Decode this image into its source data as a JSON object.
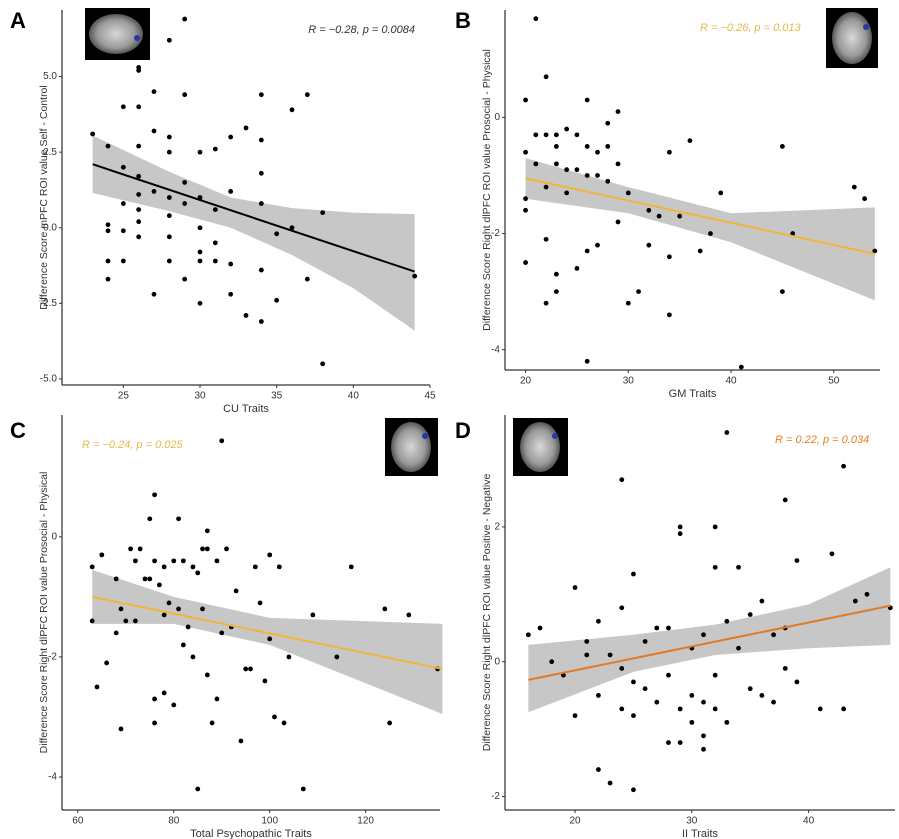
{
  "chart_data": [
    {
      "type": "scatter",
      "label": "A",
      "annotation": "R = −0.28, p = 0.0084",
      "annotation_color": "#333333",
      "x_label": "CU Traits",
      "y_label": "Difference Score mPFC ROI value Self - Control",
      "color": "#000000",
      "xlim": [
        21,
        45
      ],
      "xticks": [
        25,
        30,
        35,
        40,
        45
      ],
      "ylim": [
        -5.2,
        7.2
      ],
      "yticks": [
        {
          "value": 5,
          "label": "5.0"
        },
        {
          "value": 2.5,
          "label": "2.5"
        },
        {
          "value": 0,
          "label": "0.0"
        },
        {
          "value": -2.5,
          "label": "-2.5"
        },
        {
          "value": -5,
          "label": "-5.0"
        }
      ],
      "x": [
        23,
        24,
        24,
        24,
        24,
        24,
        25,
        25,
        25,
        25,
        25,
        26,
        26,
        26,
        26,
        26,
        26,
        26,
        26,
        26,
        27,
        27,
        27,
        27,
        28,
        28,
        28,
        28,
        28,
        28,
        28,
        29,
        29,
        29,
        29,
        29,
        30,
        30,
        30,
        30,
        30,
        30,
        31,
        31,
        31,
        31,
        32,
        32,
        32,
        32,
        33,
        33,
        34,
        34,
        34,
        34,
        34,
        34,
        35,
        35,
        36,
        36,
        37,
        37,
        38,
        38,
        44
      ],
      "y": [
        3.1,
        2.7,
        -0.1,
        -1.1,
        -1.7,
        0.1,
        4.0,
        2.0,
        0.8,
        -0.1,
        -1.1,
        5.3,
        5.2,
        4.0,
        2.7,
        1.7,
        1.1,
        0.6,
        0.2,
        -0.3,
        4.5,
        3.2,
        1.2,
        -2.2,
        6.2,
        3.0,
        2.5,
        1.0,
        0.4,
        -0.3,
        -1.1,
        4.4,
        6.9,
        1.5,
        0.8,
        -1.7,
        2.5,
        1.0,
        0.0,
        -0.8,
        -1.1,
        -2.5,
        2.6,
        0.6,
        -0.5,
        -1.1,
        3.0,
        1.2,
        -1.2,
        -2.2,
        3.3,
        -2.9,
        4.4,
        2.9,
        1.8,
        0.8,
        -1.4,
        -3.1,
        -0.2,
        -2.4,
        3.9,
        0.0,
        4.4,
        -1.7,
        0.5,
        -4.5,
        -1.6
      ],
      "trend": {
        "color": "#000000",
        "x": [
          23,
          44
        ],
        "y": [
          2.1,
          -1.45
        ]
      },
      "band": {
        "color": "#bdbdbd",
        "x": [
          23,
          28,
          32,
          36,
          40,
          44
        ],
        "lower": [
          1.15,
          0.55,
          0.0,
          -0.9,
          -2.0,
          -3.4
        ],
        "upper": [
          3.05,
          1.85,
          1.0,
          0.65,
          0.5,
          0.45
        ]
      }
    },
    {
      "type": "scatter",
      "label": "B",
      "annotation": "R = −0.26, p = 0.013",
      "annotation_color": "#e8b84a",
      "x_label": "GM Traits",
      "y_label": "Difference Score Right dlPFC ROI value Prosocial - Physical",
      "color": "#000000",
      "xlim": [
        18,
        54.5
      ],
      "xticks": [
        20,
        30,
        40,
        50
      ],
      "ylim": [
        -4.35,
        1.85
      ],
      "yticks": [
        0,
        -2,
        -4
      ],
      "x": [
        20,
        20,
        20,
        20,
        20,
        21,
        21,
        21,
        22,
        22,
        22,
        22,
        22,
        23,
        23,
        23,
        23,
        23,
        24,
        24,
        24,
        25,
        25,
        25,
        26,
        26,
        26,
        26,
        26,
        27,
        27,
        27,
        28,
        28,
        28,
        29,
        29,
        29,
        30,
        30,
        31,
        32,
        32,
        33,
        34,
        34,
        34,
        35,
        36,
        37,
        38,
        39,
        41,
        45,
        45,
        46,
        52,
        53,
        54
      ],
      "y": [
        0.3,
        -0.6,
        -1.4,
        -1.6,
        -2.5,
        1.7,
        -0.3,
        -0.8,
        0.7,
        -0.3,
        -1.2,
        -2.1,
        -3.2,
        -0.3,
        -0.5,
        -0.8,
        -2.7,
        -3.0,
        -0.2,
        -0.9,
        -1.3,
        -0.3,
        -0.9,
        -2.6,
        0.3,
        -0.5,
        -1.0,
        -2.3,
        -4.2,
        -0.6,
        -1.0,
        -2.2,
        -0.1,
        -0.5,
        -1.1,
        0.1,
        -0.8,
        -1.8,
        -1.3,
        -3.2,
        -3.0,
        -1.6,
        -2.2,
        -1.7,
        -0.6,
        -2.4,
        -3.4,
        -1.7,
        -0.4,
        -2.3,
        -2.0,
        -1.3,
        -4.3,
        -0.5,
        -3.0,
        -2.0,
        -1.2,
        -1.4,
        -2.3
      ],
      "trend": {
        "color": "#f0b63c",
        "x": [
          20,
          54
        ],
        "y": [
          -1.05,
          -2.35
        ]
      },
      "band": {
        "color": "#bdbdbd",
        "x": [
          20,
          30,
          40,
          54
        ],
        "lower": [
          -1.4,
          -1.65,
          -2.15,
          -3.15
        ],
        "upper": [
          -0.7,
          -1.2,
          -1.65,
          -1.55
        ]
      }
    },
    {
      "type": "scatter",
      "label": "C",
      "annotation": "R = −0.24, p = 0.025",
      "annotation_color": "#e8b84a",
      "x_label": "Total Psychopathic Traits",
      "y_label": "Difference Score Right dlPFC ROI value Prosocial - Physical",
      "color": "#000000",
      "xlim": [
        56.7,
        135.5
      ],
      "xticks": [
        60,
        80,
        100,
        120
      ],
      "ylim": [
        -4.55,
        2.03
      ],
      "yticks": [
        0,
        -2,
        -4
      ],
      "x": [
        63,
        63,
        64,
        65,
        66,
        68,
        68,
        69,
        69,
        70,
        71,
        72,
        72,
        73,
        74,
        75,
        75,
        76,
        76,
        76,
        76,
        77,
        78,
        78,
        78,
        79,
        80,
        80,
        81,
        81,
        82,
        82,
        83,
        84,
        84,
        85,
        85,
        86,
        86,
        87,
        87,
        87,
        88,
        89,
        89,
        90,
        90,
        91,
        92,
        93,
        94,
        95,
        96,
        97,
        98,
        99,
        100,
        100,
        101,
        102,
        103,
        104,
        107,
        109,
        114,
        117,
        124,
        125,
        129,
        135
      ],
      "y": [
        -0.5,
        -1.4,
        -2.5,
        -0.3,
        -2.1,
        -0.7,
        -1.6,
        -1.2,
        -3.2,
        -1.4,
        -0.2,
        -0.4,
        -1.4,
        -0.2,
        -0.7,
        0.3,
        -0.7,
        0.7,
        -0.4,
        -2.7,
        -3.1,
        -0.8,
        -0.5,
        -1.3,
        -2.6,
        -1.1,
        -0.4,
        -2.8,
        0.3,
        -1.2,
        -0.4,
        -1.8,
        -1.5,
        -0.5,
        -2.0,
        -0.6,
        -4.2,
        -0.2,
        -1.2,
        -0.2,
        0.1,
        -2.3,
        -3.1,
        -0.4,
        -2.7,
        1.6,
        -1.6,
        -0.2,
        -1.5,
        -0.9,
        -3.4,
        -2.2,
        -2.2,
        -0.5,
        -1.1,
        -2.4,
        -0.3,
        -1.7,
        -3.0,
        -0.5,
        -3.1,
        -2.0,
        -4.2,
        -1.3,
        -2.0,
        -0.5,
        -1.2,
        -3.1,
        -1.3,
        -2.2
      ],
      "trend": {
        "color": "#f0b63c",
        "x": [
          63,
          136
        ],
        "y": [
          -1.0,
          -2.2
        ]
      },
      "band": {
        "color": "#bdbdbd",
        "x": [
          63,
          80,
          100,
          136
        ],
        "lower": [
          -1.45,
          -1.45,
          -1.8,
          -2.95
        ],
        "upper": [
          -0.55,
          -1.0,
          -1.35,
          -1.45
        ]
      }
    },
    {
      "type": "scatter",
      "label": "D",
      "annotation": "R = 0.22, p = 0.034",
      "annotation_color": "#e67e22",
      "x_label": "II Traits",
      "y_label": "Difference Score Right dlPFC ROI value Positive - Negative",
      "color": "#000000",
      "xlim": [
        14,
        47.4
      ],
      "xticks": [
        20,
        30,
        40
      ],
      "ylim": [
        -2.2,
        3.66
      ],
      "yticks": [
        2,
        0,
        -2
      ],
      "x": [
        16,
        17,
        18,
        19,
        20,
        20,
        21,
        21,
        22,
        22,
        22,
        23,
        23,
        24,
        24,
        24,
        24,
        25,
        25,
        25,
        25,
        26,
        26,
        27,
        27,
        28,
        28,
        28,
        29,
        29,
        29,
        29,
        30,
        30,
        30,
        31,
        31,
        31,
        31,
        32,
        32,
        32,
        32,
        33,
        33,
        33,
        34,
        34,
        35,
        35,
        36,
        36,
        37,
        37,
        38,
        38,
        38,
        39,
        39,
        41,
        42,
        43,
        43,
        44,
        45,
        47
      ],
      "y": [
        0.4,
        0.5,
        0.0,
        -0.2,
        1.1,
        -0.8,
        0.3,
        0.1,
        -0.5,
        -1.6,
        0.6,
        -1.8,
        0.1,
        2.7,
        0.8,
        -0.1,
        -0.7,
        1.3,
        -0.3,
        -0.8,
        -1.9,
        0.3,
        -0.4,
        0.5,
        -0.6,
        0.5,
        -0.2,
        -1.2,
        2.0,
        1.9,
        -0.7,
        -1.2,
        0.2,
        -0.5,
        -0.9,
        0.4,
        -0.6,
        -1.1,
        -1.3,
        1.4,
        2.0,
        -0.2,
        -0.7,
        3.4,
        0.6,
        -0.9,
        1.4,
        0.2,
        0.7,
        -0.4,
        0.9,
        -0.5,
        0.4,
        -0.6,
        2.4,
        0.5,
        -0.1,
        1.5,
        -0.3,
        -0.7,
        1.6,
        -0.7,
        2.9,
        0.9,
        1.0,
        0.8
      ],
      "trend": {
        "color": "#e07b2a",
        "x": [
          16,
          47
        ],
        "y": [
          -0.27,
          0.83
        ]
      },
      "band": {
        "color": "#bdbdbd",
        "x": [
          16,
          25,
          32,
          40,
          47
        ],
        "lower": [
          -0.75,
          -0.15,
          0.1,
          0.2,
          0.25
        ],
        "upper": [
          0.25,
          0.4,
          0.55,
          0.85,
          1.4
        ]
      }
    }
  ]
}
